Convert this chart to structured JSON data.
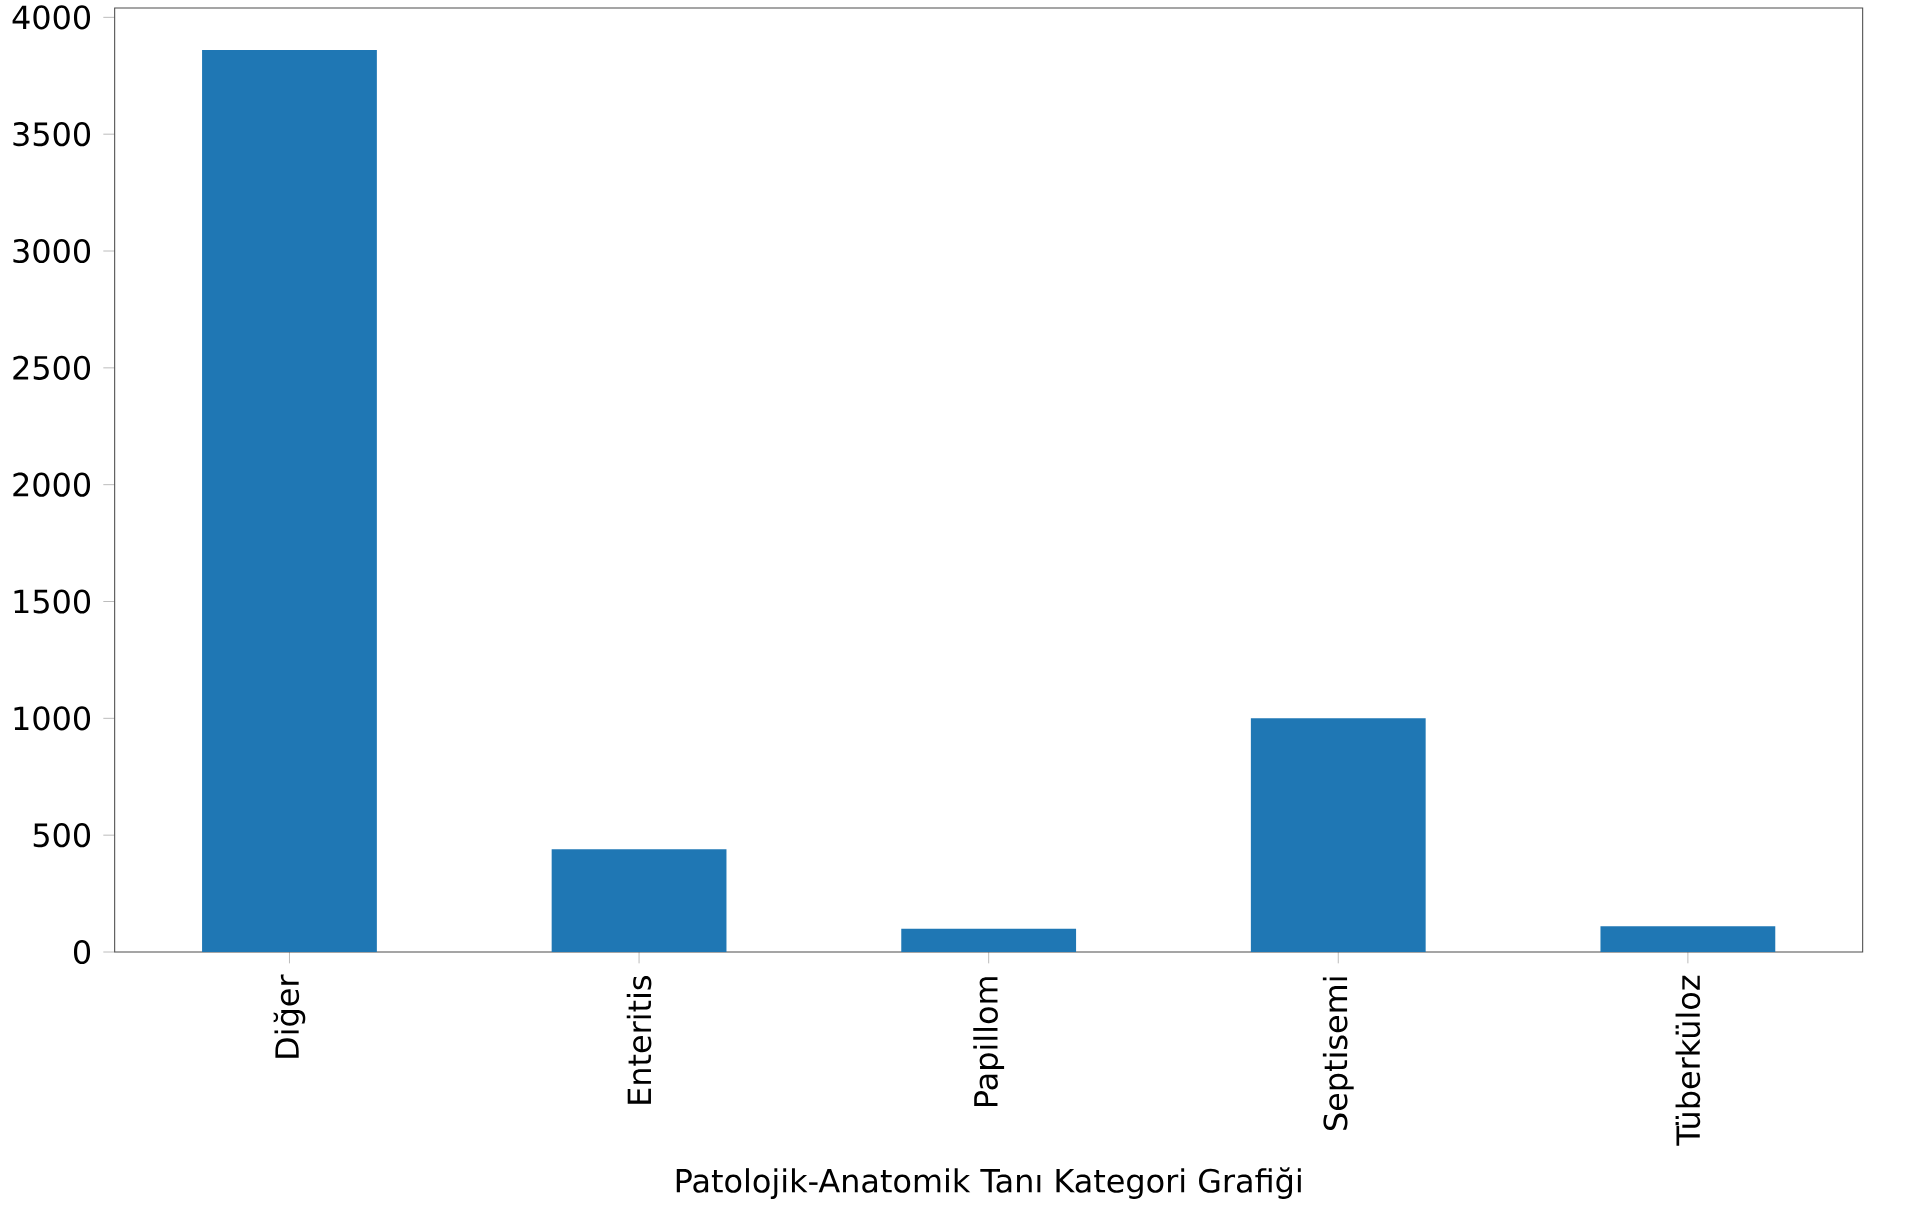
{
  "chart_data": {
    "type": "bar",
    "xlabel": "Patolojik-Anatomik Tanı Kategori Grafiği",
    "categories": [
      "Diğer",
      "Enteritis",
      "Papillom",
      "Septisemi",
      "Tüberküloz"
    ],
    "values": [
      3860,
      440,
      100,
      1000,
      110
    ],
    "color": "#1f77b4",
    "ylim": [
      0,
      4040
    ],
    "yticks": [
      0,
      500,
      1000,
      1500,
      2000,
      2500,
      3000,
      3500,
      4000
    ]
  }
}
